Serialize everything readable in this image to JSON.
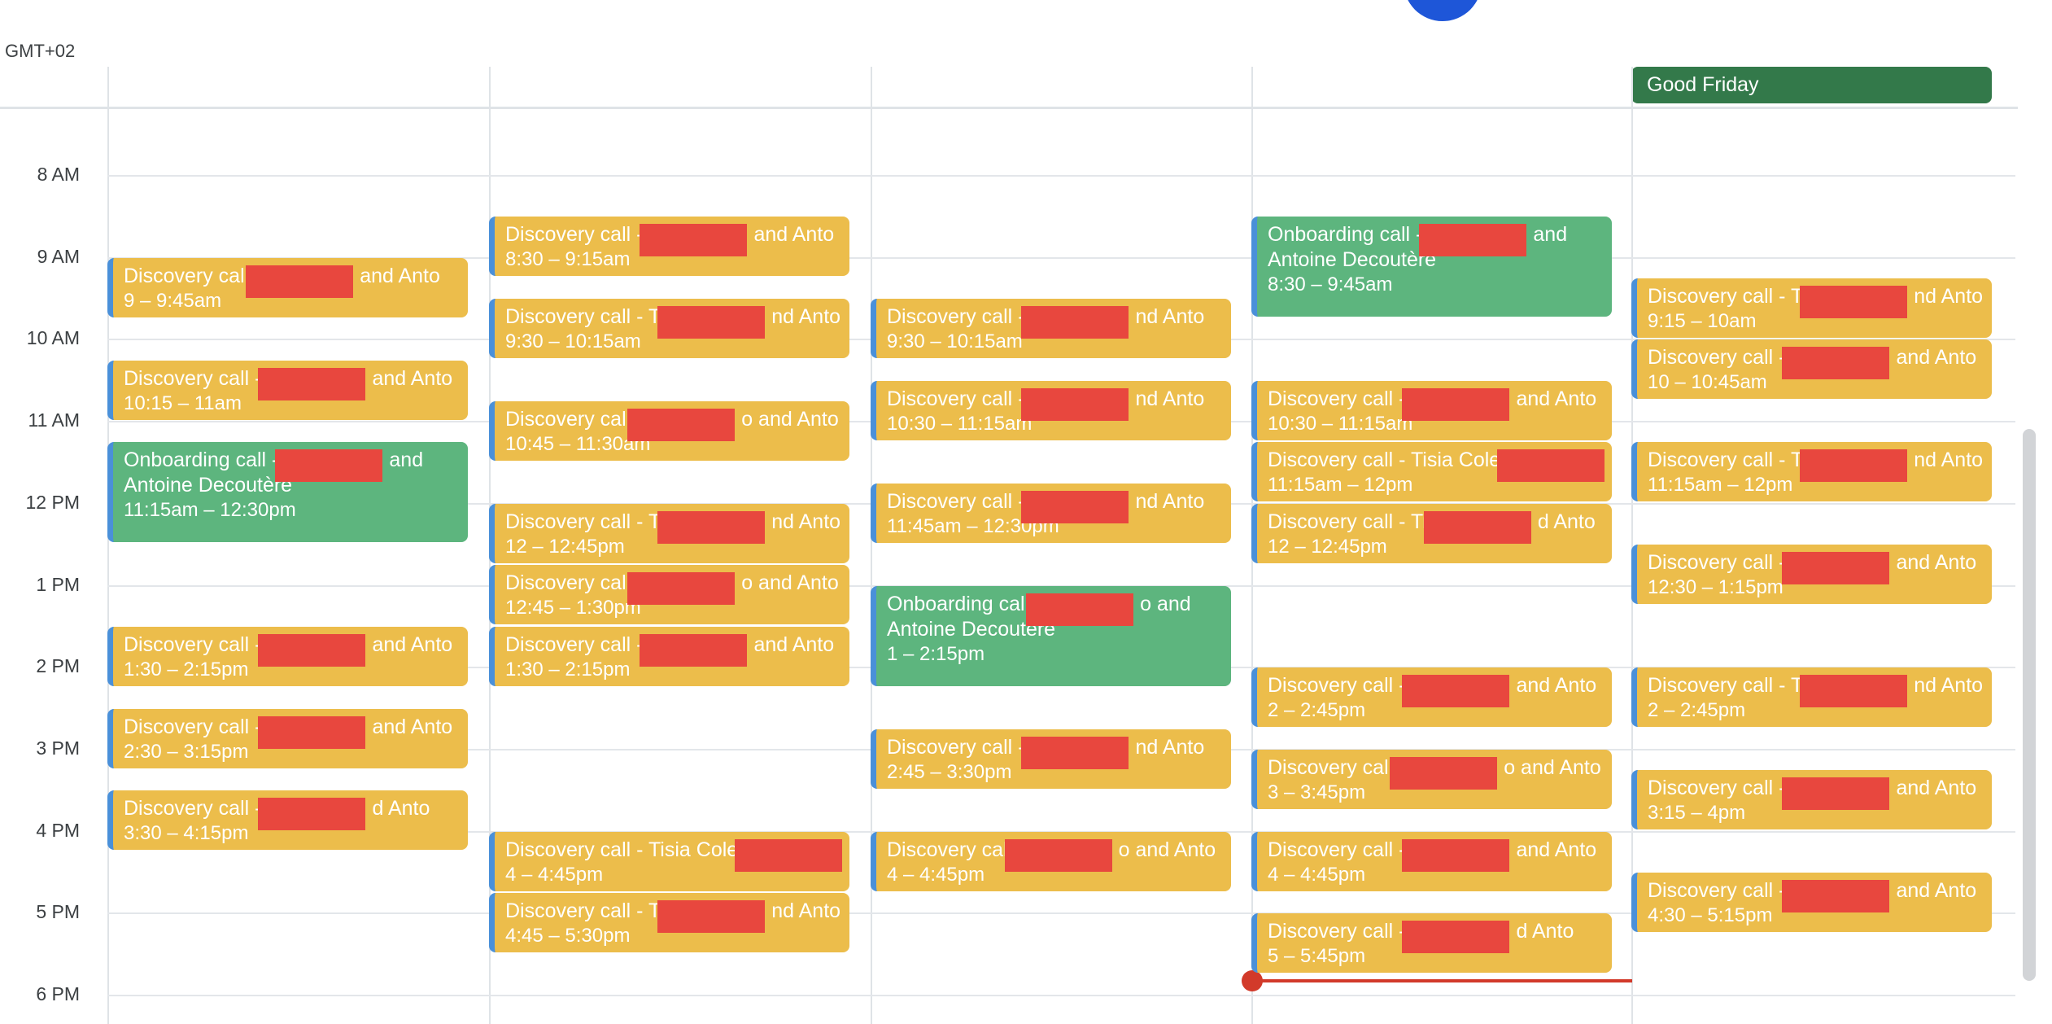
{
  "calendar": {
    "timezone": "GMT+02",
    "hours": [
      "8 AM",
      "9 AM",
      "10 AM",
      "11 AM",
      "12 PM",
      "1 PM",
      "2 PM",
      "3 PM",
      "4 PM",
      "5 PM",
      "6 PM"
    ],
    "all_day_event": {
      "label": "Good Friday",
      "color": "#33794a"
    },
    "colors": {
      "discovery": "#ecbd4b",
      "onboarding": "#5db57e",
      "edge": "#4a90d9",
      "now_indicator": "#d23a2a",
      "redaction": "#e8473e"
    },
    "days": [
      {
        "events": [
          {
            "type": "discovery",
            "title": "Discovery call",
            "tail": "and Anto",
            "time": "9 – 9:45am"
          },
          {
            "type": "discovery",
            "title": "Discovery call -",
            "tail": "and Anto",
            "time": "10:15 – 11am"
          },
          {
            "type": "onboarding",
            "title": "Onboarding call -",
            "tail": "and",
            "line2": "Antoine Decoutère",
            "time": "11:15am – 12:30pm"
          },
          {
            "type": "discovery",
            "title": "Discovery call -",
            "tail": "and Anto",
            "time": "1:30 – 2:15pm"
          },
          {
            "type": "discovery",
            "title": "Discovery call -",
            "tail": "and Anto",
            "time": "2:30 – 3:15pm"
          },
          {
            "type": "discovery",
            "title": "Discovery call -",
            "tail": "d Anto",
            "time": "3:30 – 4:15pm"
          }
        ]
      },
      {
        "events": [
          {
            "type": "discovery",
            "title": "Discovery call -",
            "tail": "and Anto",
            "time": "8:30 – 9:15am"
          },
          {
            "type": "discovery",
            "title": "Discovery call - T",
            "tail": "nd Anto",
            "time": "9:30 – 10:15am"
          },
          {
            "type": "discovery",
            "title": "Discovery call",
            "tail": "o and Anto",
            "time": "10:45 – 11:30am"
          },
          {
            "type": "discovery",
            "title": "Discovery call - T",
            "tail": "nd Anto",
            "time": "12 – 12:45pm"
          },
          {
            "type": "discovery",
            "title": "Discovery call",
            "tail": "o and Anto",
            "time": "12:45 – 1:30pm"
          },
          {
            "type": "discovery",
            "title": "Discovery call -",
            "tail": "and Anto",
            "time": "1:30 – 2:15pm"
          },
          {
            "type": "discovery",
            "title": "Discovery call - Tisia Cole",
            "tail": "and Anto",
            "time": "4 – 4:45pm"
          },
          {
            "type": "discovery",
            "title": "Discovery call - T",
            "tail": "nd Anto",
            "time": "4:45 – 5:30pm"
          }
        ]
      },
      {
        "events": [
          {
            "type": "discovery",
            "title": "Discovery call -",
            "tail": "nd Anto",
            "time": "9:30 – 10:15am"
          },
          {
            "type": "discovery",
            "title": "Discovery call -",
            "tail": "nd Anto",
            "time": "10:30 – 11:15am"
          },
          {
            "type": "discovery",
            "title": "Discovery call -",
            "tail": "nd Anto",
            "time": "11:45am – 12:30pm"
          },
          {
            "type": "onboarding",
            "title": "Onboarding call",
            "tail": "o and",
            "line2": "Antoine Decoutère",
            "time": "1 – 2:15pm"
          },
          {
            "type": "discovery",
            "title": "Discovery call -",
            "tail": "nd Anto",
            "time": "2:45 – 3:30pm"
          },
          {
            "type": "discovery",
            "title": "Discovery cal",
            "tail": "o and Anto",
            "time": "4 – 4:45pm"
          }
        ]
      },
      {
        "events": [
          {
            "type": "onboarding",
            "title": "Onboarding call -",
            "tail": "and",
            "line2": "Antoine Decoutère",
            "time": "8:30 – 9:45am"
          },
          {
            "type": "discovery",
            "title": "Discovery call -",
            "tail": "and Anto",
            "time": "10:30 – 11:15am"
          },
          {
            "type": "discovery",
            "title": "Discovery call - Tisia Cole",
            "tail": "and Anto",
            "time": "11:15am – 12pm"
          },
          {
            "type": "discovery",
            "title": "Discovery call - Ti",
            "tail": "d Anto",
            "time": "12 – 12:45pm"
          },
          {
            "type": "discovery",
            "title": "Discovery call -",
            "tail": "and Anto",
            "time": "2 – 2:45pm"
          },
          {
            "type": "discovery",
            "title": "Discovery call",
            "tail": "o and Anto",
            "time": "3 – 3:45pm"
          },
          {
            "type": "discovery",
            "title": "Discovery call -",
            "tail": "and Anto",
            "time": "4 – 4:45pm"
          },
          {
            "type": "discovery",
            "title": "Discovery call -",
            "tail": "d Anto",
            "time": "5 – 5:45pm"
          }
        ]
      },
      {
        "events": [
          {
            "type": "discovery",
            "title": "Discovery call - T",
            "tail": "nd Anto",
            "time": "9:15 – 10am"
          },
          {
            "type": "discovery",
            "title": "Discovery call -",
            "tail": "and Anto",
            "time": "10 – 10:45am"
          },
          {
            "type": "discovery",
            "title": "Discovery call - T",
            "tail": "nd Anto",
            "time": "11:15am – 12pm"
          },
          {
            "type": "discovery",
            "title": "Discovery call -",
            "tail": "and Anto",
            "time": "12:30 – 1:15pm"
          },
          {
            "type": "discovery",
            "title": "Discovery call - T",
            "tail": "nd Anto",
            "time": "2 – 2:45pm"
          },
          {
            "type": "discovery",
            "title": "Discovery call -",
            "tail": "and Anto",
            "time": "3:15 – 4pm"
          },
          {
            "type": "discovery",
            "title": "Discovery call -",
            "tail": "and Anto",
            "time": "4:30 – 5:15pm"
          }
        ]
      }
    ]
  }
}
